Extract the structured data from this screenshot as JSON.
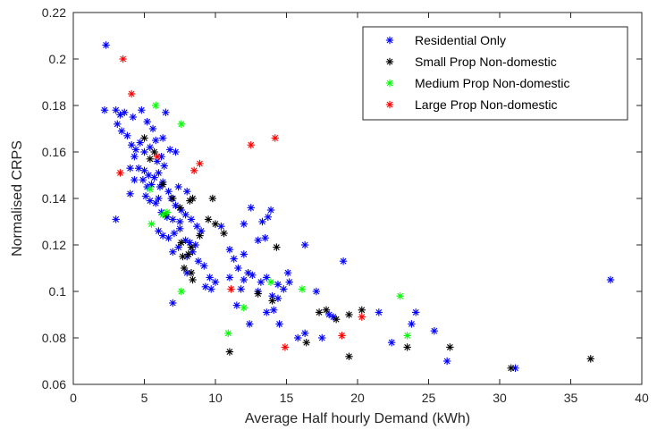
{
  "chart_data": {
    "type": "scatter",
    "xlabel": "Average Half hourly Demand (kWh)",
    "ylabel": "Normalised CRPS",
    "xlim": [
      0,
      40
    ],
    "ylim": [
      0.06,
      0.22
    ],
    "xticks": [
      0,
      5,
      10,
      15,
      20,
      25,
      30,
      35,
      40
    ],
    "yticks": [
      0.06,
      0.08,
      0.1,
      0.12,
      0.14,
      0.16,
      0.18,
      0.2,
      0.22
    ],
    "ytick_labels": [
      "0.06",
      "0.08",
      "0.1",
      "0.12",
      "0.14",
      "0.16",
      "0.18",
      "0.2",
      "0.22"
    ],
    "grid": false,
    "legend_position": "top-right",
    "marker": "*",
    "series": [
      {
        "name": "Residential Only",
        "color": "#0000ff",
        "points": [
          [
            2.3,
            0.206
          ],
          [
            2.2,
            0.178
          ],
          [
            3.0,
            0.178
          ],
          [
            3.3,
            0.176
          ],
          [
            3.6,
            0.177
          ],
          [
            4.2,
            0.175
          ],
          [
            4.8,
            0.178
          ],
          [
            5.2,
            0.173
          ],
          [
            5.6,
            0.17
          ],
          [
            5.8,
            0.165
          ],
          [
            6.3,
            0.166
          ],
          [
            6.5,
            0.177
          ],
          [
            3.1,
            0.172
          ],
          [
            3.4,
            0.169
          ],
          [
            3.8,
            0.167
          ],
          [
            4.1,
            0.163
          ],
          [
            4.4,
            0.161
          ],
          [
            4.7,
            0.164
          ],
          [
            5.0,
            0.16
          ],
          [
            5.4,
            0.162
          ],
          [
            5.9,
            0.156
          ],
          [
            6.2,
            0.158
          ],
          [
            6.8,
            0.161
          ],
          [
            7.2,
            0.16
          ],
          [
            4.3,
            0.158
          ],
          [
            4.6,
            0.153
          ],
          [
            5.0,
            0.152
          ],
          [
            5.3,
            0.15
          ],
          [
            5.7,
            0.149
          ],
          [
            6.0,
            0.151
          ],
          [
            6.4,
            0.154
          ],
          [
            4.0,
            0.153
          ],
          [
            4.3,
            0.148
          ],
          [
            4.9,
            0.148
          ],
          [
            5.2,
            0.145
          ],
          [
            5.5,
            0.146
          ],
          [
            6.1,
            0.145
          ],
          [
            6.3,
            0.147
          ],
          [
            6.7,
            0.143
          ],
          [
            5.1,
            0.141
          ],
          [
            5.4,
            0.139
          ],
          [
            5.8,
            0.138
          ],
          [
            6.0,
            0.14
          ],
          [
            6.9,
            0.14
          ],
          [
            7.2,
            0.137
          ],
          [
            7.4,
            0.145
          ],
          [
            8.0,
            0.143
          ],
          [
            7.6,
            0.135
          ],
          [
            6.2,
            0.134
          ],
          [
            6.6,
            0.132
          ],
          [
            7.0,
            0.131
          ],
          [
            7.5,
            0.13
          ],
          [
            7.9,
            0.133
          ],
          [
            8.3,
            0.131
          ],
          [
            8.7,
            0.128
          ],
          [
            9.0,
            0.126
          ],
          [
            6.0,
            0.126
          ],
          [
            6.3,
            0.124
          ],
          [
            6.7,
            0.123
          ],
          [
            7.1,
            0.125
          ],
          [
            7.5,
            0.127
          ],
          [
            7.9,
            0.122
          ],
          [
            8.2,
            0.121
          ],
          [
            8.6,
            0.12
          ],
          [
            7.0,
            0.117
          ],
          [
            7.4,
            0.119
          ],
          [
            8.0,
            0.115
          ],
          [
            8.4,
            0.117
          ],
          [
            8.8,
            0.113
          ],
          [
            9.2,
            0.111
          ],
          [
            9.6,
            0.106
          ],
          [
            8.0,
            0.108
          ],
          [
            3.0,
            0.131
          ],
          [
            4.0,
            0.142
          ],
          [
            7.0,
            0.095
          ],
          [
            9.3,
            0.102
          ],
          [
            9.7,
            0.101
          ],
          [
            10.0,
            0.104
          ],
          [
            11.0,
            0.118
          ],
          [
            11.3,
            0.114
          ],
          [
            11.0,
            0.106
          ],
          [
            11.6,
            0.11
          ],
          [
            12.0,
            0.105
          ],
          [
            12.3,
            0.108
          ],
          [
            11.8,
            0.101
          ],
          [
            12.4,
            0.086
          ],
          [
            11.5,
            0.094
          ],
          [
            12.5,
            0.136
          ],
          [
            12.0,
            0.129
          ],
          [
            13.3,
            0.13
          ],
          [
            13.9,
            0.135
          ],
          [
            13.7,
            0.132
          ],
          [
            13.5,
            0.123
          ],
          [
            13.0,
            0.122
          ],
          [
            12.6,
            0.107
          ],
          [
            13.2,
            0.104
          ],
          [
            13.6,
            0.106
          ],
          [
            13.0,
            0.1
          ],
          [
            14.0,
            0.098
          ],
          [
            14.4,
            0.103
          ],
          [
            14.8,
            0.101
          ],
          [
            15.2,
            0.104
          ],
          [
            15.1,
            0.108
          ],
          [
            14.5,
            0.086
          ],
          [
            14.1,
            0.092
          ],
          [
            14.4,
            0.097
          ],
          [
            13.6,
            0.091
          ],
          [
            15.8,
            0.08
          ],
          [
            16.3,
            0.082
          ],
          [
            16.3,
            0.12
          ],
          [
            17.1,
            0.1
          ],
          [
            17.5,
            0.08
          ],
          [
            18.0,
            0.09
          ],
          [
            18.3,
            0.089
          ],
          [
            19.0,
            0.113
          ],
          [
            21.5,
            0.091
          ],
          [
            22.4,
            0.078
          ],
          [
            23.8,
            0.086
          ],
          [
            24.1,
            0.091
          ],
          [
            25.4,
            0.083
          ],
          [
            26.3,
            0.07
          ],
          [
            31.1,
            0.067
          ],
          [
            37.8,
            0.105
          ],
          [
            12.0,
            0.116
          ],
          [
            10.4,
            0.128
          ]
        ]
      },
      {
        "name": "Small Prop Non-domestic",
        "color": "#000000",
        "points": [
          [
            5.0,
            0.166
          ],
          [
            5.7,
            0.16
          ],
          [
            5.4,
            0.157
          ],
          [
            6.3,
            0.146
          ],
          [
            7.0,
            0.14
          ],
          [
            7.5,
            0.136
          ],
          [
            8.2,
            0.139
          ],
          [
            8.4,
            0.14
          ],
          [
            9.8,
            0.14
          ],
          [
            10.0,
            0.129
          ],
          [
            9.5,
            0.131
          ],
          [
            10.6,
            0.125
          ],
          [
            8.9,
            0.124
          ],
          [
            7.6,
            0.121
          ],
          [
            8.3,
            0.119
          ],
          [
            7.7,
            0.115
          ],
          [
            8.1,
            0.116
          ],
          [
            7.8,
            0.11
          ],
          [
            8.3,
            0.108
          ],
          [
            8.4,
            0.105
          ],
          [
            6.5,
            0.133
          ],
          [
            11.0,
            0.074
          ],
          [
            13.0,
            0.099
          ],
          [
            14.0,
            0.096
          ],
          [
            14.3,
            0.119
          ],
          [
            16.4,
            0.078
          ],
          [
            17.3,
            0.091
          ],
          [
            17.8,
            0.092
          ],
          [
            18.5,
            0.088
          ],
          [
            19.4,
            0.09
          ],
          [
            20.3,
            0.092
          ],
          [
            19.4,
            0.072
          ],
          [
            23.5,
            0.076
          ],
          [
            26.5,
            0.076
          ],
          [
            30.8,
            0.067
          ],
          [
            36.4,
            0.071
          ]
        ]
      },
      {
        "name": "Medium Prop Non-domestic",
        "color": "#00ff00",
        "points": [
          [
            5.8,
            0.18
          ],
          [
            7.6,
            0.172
          ],
          [
            5.4,
            0.144
          ],
          [
            6.3,
            0.133
          ],
          [
            6.6,
            0.134
          ],
          [
            7.6,
            0.1
          ],
          [
            10.9,
            0.082
          ],
          [
            12.0,
            0.093
          ],
          [
            13.9,
            0.104
          ],
          [
            16.1,
            0.101
          ],
          [
            23.0,
            0.098
          ],
          [
            23.5,
            0.081
          ],
          [
            5.5,
            0.129
          ]
        ]
      },
      {
        "name": "Large Prop Non-domestic",
        "color": "#ff0000",
        "points": [
          [
            3.5,
            0.2
          ],
          [
            4.1,
            0.185
          ],
          [
            5.9,
            0.158
          ],
          [
            3.3,
            0.151
          ],
          [
            8.5,
            0.152
          ],
          [
            8.9,
            0.155
          ],
          [
            12.5,
            0.163
          ],
          [
            14.2,
            0.166
          ],
          [
            11.1,
            0.101
          ],
          [
            14.9,
            0.076
          ],
          [
            18.9,
            0.081
          ],
          [
            20.3,
            0.089
          ]
        ]
      }
    ]
  }
}
